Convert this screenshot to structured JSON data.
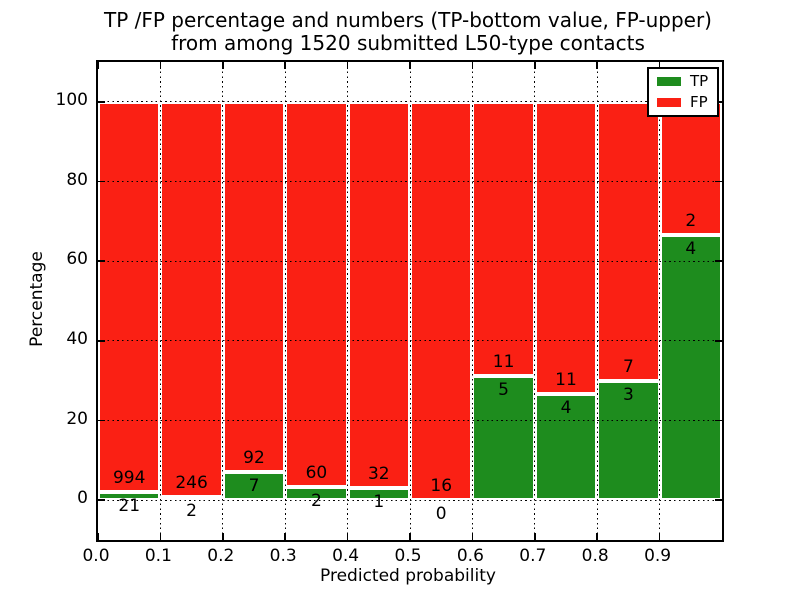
{
  "figure": {
    "title_line1": "TP /FP percentage and numbers (TP-bottom value, FP-upper)",
    "title_line2": "from among 1520 submitted L50-type contacts"
  },
  "axes": {
    "xlabel": "Predicted probability",
    "ylabel": "Percentage",
    "xticks": [
      {
        "value": 0.0,
        "label": "0.0"
      },
      {
        "value": 0.1,
        "label": "0.1"
      },
      {
        "value": 0.2,
        "label": "0.2"
      },
      {
        "value": 0.3,
        "label": "0.3"
      },
      {
        "value": 0.4,
        "label": "0.4"
      },
      {
        "value": 0.5,
        "label": "0.5"
      },
      {
        "value": 0.6,
        "label": "0.6"
      },
      {
        "value": 0.7,
        "label": "0.7"
      },
      {
        "value": 0.8,
        "label": "0.8"
      },
      {
        "value": 0.9,
        "label": "0.9"
      }
    ],
    "yticks": [
      {
        "value": 0,
        "label": "0"
      },
      {
        "value": 20,
        "label": "20"
      },
      {
        "value": 40,
        "label": "40"
      },
      {
        "value": 60,
        "label": "60"
      },
      {
        "value": 80,
        "label": "80"
      },
      {
        "value": 100,
        "label": "100"
      }
    ],
    "xlim": [
      0.0,
      1.0
    ],
    "ylim": [
      -10,
      110
    ]
  },
  "legend": {
    "position": "upper right",
    "items": [
      {
        "label": "TP",
        "color": "#1e8c1e"
      },
      {
        "label": "FP",
        "color": "#fa2014"
      }
    ]
  },
  "colors": {
    "tp_green": "#1e8c1e",
    "fp_red": "#fa2014",
    "bar_edge": "#ffffff",
    "grid": "#000000",
    "text": "#000000",
    "background": "#ffffff"
  },
  "chart_data": {
    "type": "bar",
    "variant": "stacked-percentage",
    "title": "TP /FP percentage and numbers (TP-bottom value, FP-upper) from among 1520 submitted L50-type contacts",
    "xlabel": "Predicted probability",
    "ylabel": "Percentage",
    "total_submitted": 1520,
    "bin_width": 0.1,
    "categories": [
      "0.0-0.1",
      "0.1-0.2",
      "0.2-0.3",
      "0.3-0.4",
      "0.4-0.5",
      "0.5-0.6",
      "0.6-0.7",
      "0.7-0.8",
      "0.8-0.9",
      "0.9-1.0"
    ],
    "bin_start": [
      0.0,
      0.1,
      0.2,
      0.3,
      0.4,
      0.5,
      0.6,
      0.7,
      0.8,
      0.9
    ],
    "series": [
      {
        "name": "TP",
        "color": "#1e8c1e",
        "counts": [
          21,
          2,
          7,
          2,
          1,
          0,
          5,
          4,
          3,
          4
        ]
      },
      {
        "name": "FP",
        "color": "#fa2014",
        "counts": [
          994,
          246,
          92,
          60,
          32,
          16,
          11,
          11,
          7,
          2
        ]
      }
    ],
    "tp_percent_of_bin": [
      2.07,
      0.81,
      7.07,
      3.23,
      3.03,
      0.0,
      31.25,
      26.67,
      30.0,
      66.67
    ],
    "annotation_scheme": "FP count printed above the TP/FP boundary, TP count printed below it",
    "ylim": [
      -10,
      110
    ],
    "xlim": [
      0.0,
      1.0
    ],
    "grid": "dotted black, x every 0.1, y every 20",
    "legend_position": "upper right"
  }
}
